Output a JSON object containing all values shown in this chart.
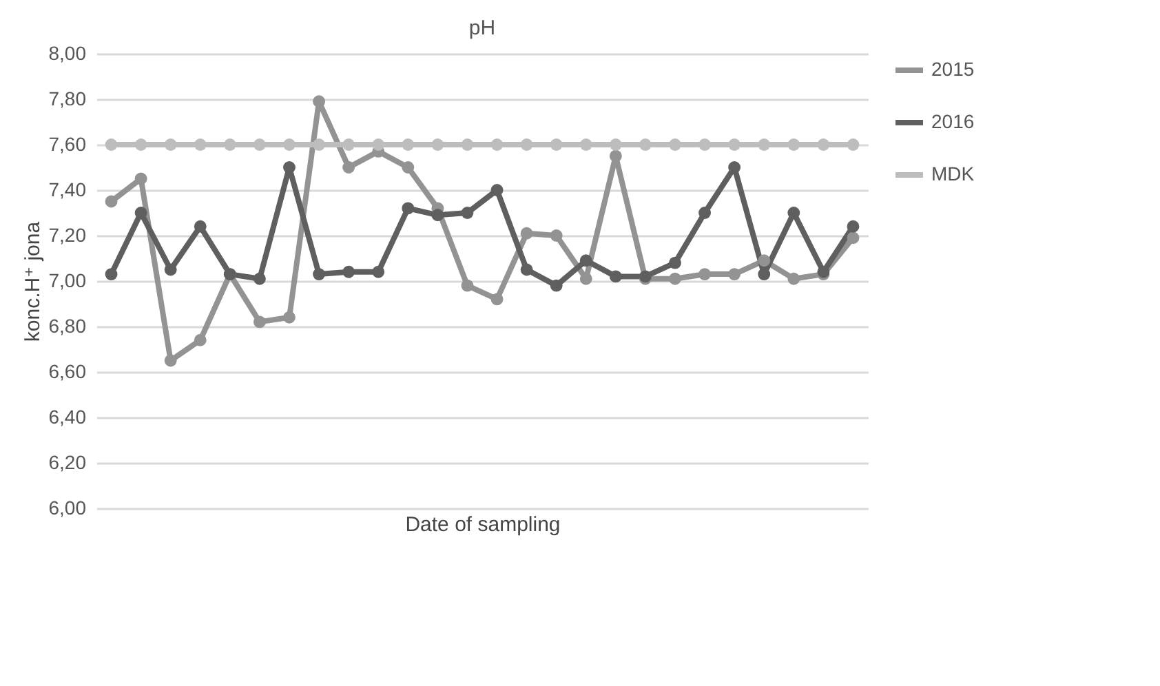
{
  "chart_data": {
    "type": "line",
    "title": "pH",
    "xlabel": "Date of sampling",
    "ylabel": "konc.H⁺ jona",
    "categories": [
      null,
      null,
      null,
      null,
      null,
      null,
      null,
      null,
      null,
      null,
      null,
      null,
      null,
      null,
      null,
      null,
      null,
      null,
      null,
      null,
      null,
      null,
      null,
      null,
      null,
      null
    ],
    "series": [
      {
        "name": "2015",
        "color": "#939393",
        "values": [
          7.35,
          7.45,
          6.65,
          6.74,
          7.03,
          6.82,
          6.84,
          7.79,
          7.5,
          7.57,
          7.5,
          7.32,
          6.98,
          6.92,
          7.21,
          7.2,
          7.01,
          7.55,
          7.01,
          7.01,
          7.03,
          7.03,
          7.09,
          7.01,
          7.03,
          7.19
        ]
      },
      {
        "name": "2016",
        "color": "#5f5f5f",
        "values": [
          7.03,
          7.3,
          7.05,
          7.24,
          7.03,
          7.01,
          7.5,
          7.03,
          7.04,
          7.04,
          7.32,
          7.29,
          7.3,
          7.4,
          7.05,
          6.98,
          7.09,
          7.02,
          7.02,
          7.08,
          7.3,
          7.5,
          7.03,
          7.3,
          7.04,
          7.24
        ]
      },
      {
        "name": "MDK",
        "color": "#bdbdbd",
        "values": [
          7.6,
          7.6,
          7.6,
          7.6,
          7.6,
          7.6,
          7.6,
          7.6,
          7.6,
          7.6,
          7.6,
          7.6,
          7.6,
          7.6,
          7.6,
          7.6,
          7.6,
          7.6,
          7.6,
          7.6,
          7.6,
          7.6,
          7.6,
          7.6,
          7.6,
          7.6
        ]
      }
    ],
    "ylim": [
      6,
      8
    ],
    "yticks": [
      {
        "value": 6,
        "label": "6,00"
      },
      {
        "value": 6.2,
        "label": "6,20"
      },
      {
        "value": 6.4,
        "label": "6,40"
      },
      {
        "value": 6.6,
        "label": "6,60"
      },
      {
        "value": 6.8,
        "label": "6,80"
      },
      {
        "value": 7,
        "label": "7,00"
      },
      {
        "value": 7.2,
        "label": "7,20"
      },
      {
        "value": 7.4,
        "label": "7,40"
      },
      {
        "value": 7.6,
        "label": "7,60"
      },
      {
        "value": 7.8,
        "label": "7,80"
      },
      {
        "value": 8,
        "label": "8,00"
      }
    ],
    "grid": "y",
    "legend": "right",
    "marker": "circle",
    "line_style": "solid",
    "tick_labels": "y"
  }
}
